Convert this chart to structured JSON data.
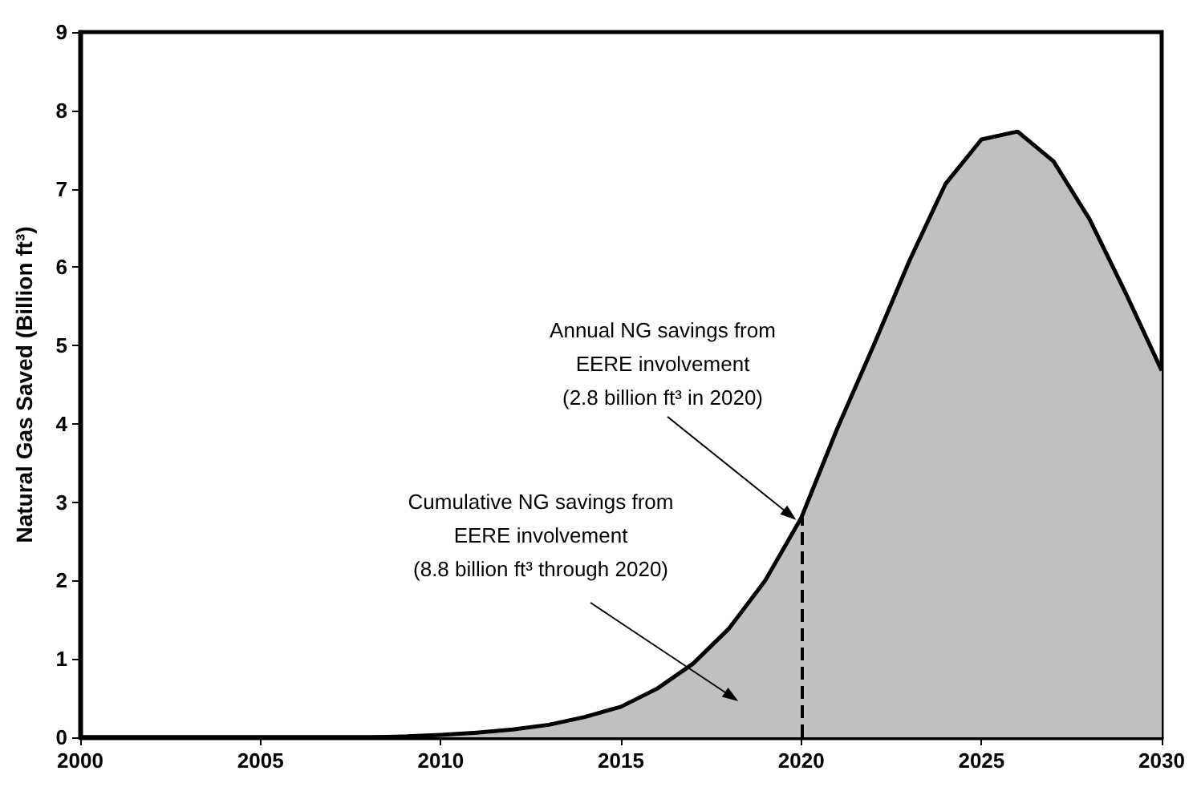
{
  "chart_data": {
    "type": "area",
    "ylabel": "Natural Gas Saved (Billion ft³)",
    "x": [
      2000,
      2001,
      2002,
      2003,
      2004,
      2005,
      2006,
      2007,
      2008,
      2009,
      2010,
      2011,
      2012,
      2013,
      2014,
      2015,
      2016,
      2017,
      2018,
      2019,
      2020,
      2021,
      2022,
      2023,
      2024,
      2025,
      2026,
      2027,
      2028,
      2029,
      2030
    ],
    "series": [
      {
        "color": "#c0c0c0",
        "values": [
          0,
          0,
          0,
          0,
          0,
          0,
          0,
          0,
          0,
          0.01,
          0.03,
          0.06,
          0.1,
          0.16,
          0.26,
          0.39,
          0.62,
          0.94,
          1.39,
          2.0,
          2.8,
          3.94,
          4.99,
          6.08,
          7.06,
          7.63,
          7.73,
          7.35,
          6.61,
          5.67,
          4.68
        ]
      }
    ],
    "xlim": [
      2000,
      2030
    ],
    "xticks": [
      2000,
      2005,
      2010,
      2015,
      2020,
      2025,
      2030
    ],
    "ylim": [
      0,
      9
    ],
    "yticks": [
      0,
      1,
      2,
      3,
      4,
      5,
      6,
      7,
      8,
      9
    ],
    "grid": false,
    "marker": "none",
    "line_style": "solid",
    "ref_lines": [
      {
        "axis": "x",
        "value": 2020,
        "line_style": "dashed",
        "color": "#000000"
      }
    ],
    "annotations": [
      "Annual NG savings from\nEERE involvement\n(2.8 billion ft³ in 2020)",
      "Cumulative NG savings from\nEERE involvement\n(8.8 billion ft³ through 2020)"
    ]
  }
}
